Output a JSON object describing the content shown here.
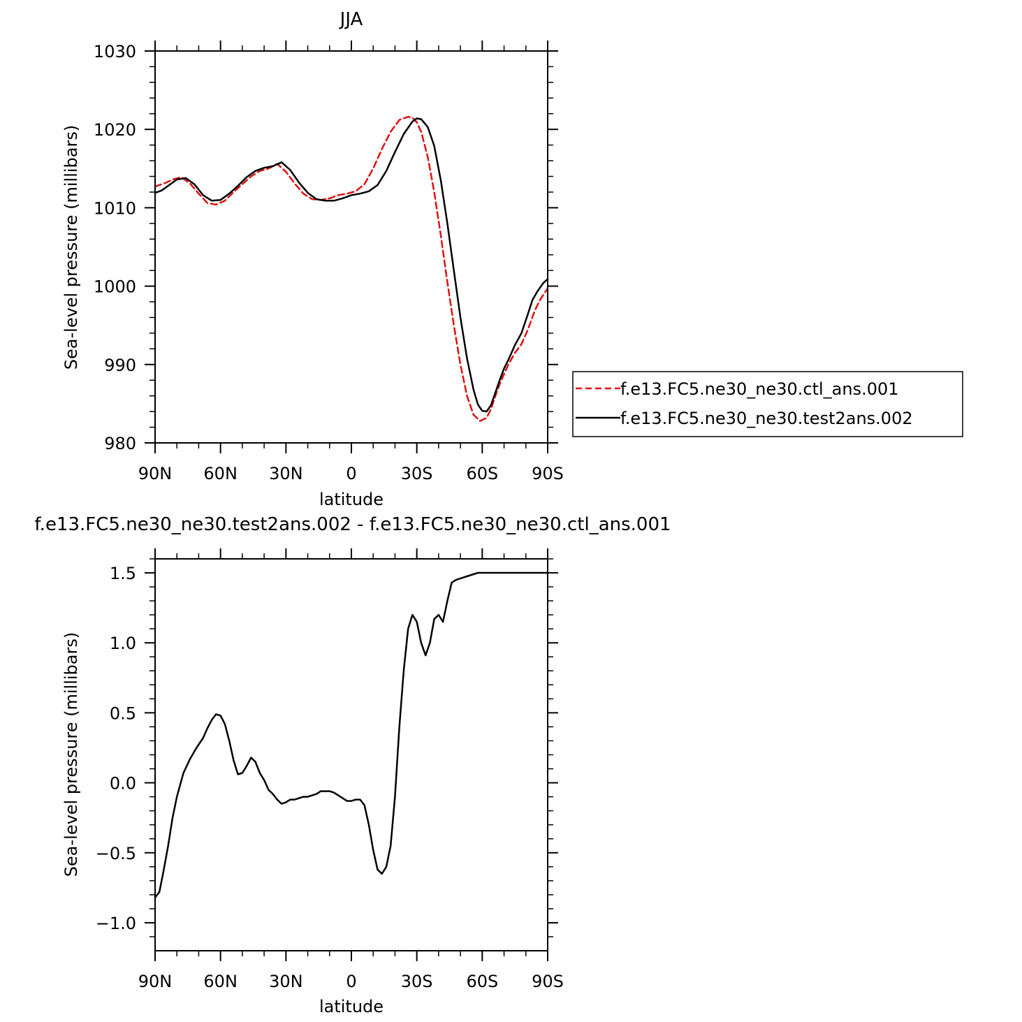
{
  "chart_data": [
    {
      "type": "line",
      "title": "JJA",
      "xlabel": "latitude",
      "ylabel": "Sea-level pressure (millibars)",
      "xlim": [
        -90,
        90
      ],
      "x_direction": "90N (left) to 90S (right)",
      "ylim": [
        980,
        1030
      ],
      "x_ticks": [
        -90,
        -60,
        -30,
        0,
        30,
        60,
        90
      ],
      "x_tick_labels": [
        "90N",
        "60N",
        "30N",
        "0",
        "30S",
        "60S",
        "90S"
      ],
      "y_ticks": [
        980,
        990,
        1000,
        1010,
        1020,
        1030
      ],
      "y_tick_labels": [
        "980",
        "990",
        "1000",
        "1010",
        "1020",
        "1030"
      ],
      "grid": false,
      "legend_position": "outside-right",
      "series": [
        {
          "name": "f.e13.FC5.ne30_ne30.ctl_ans.001",
          "color": "#e01010",
          "style": "dashed",
          "x": [
            -90,
            -85,
            -82,
            -78,
            -74,
            -70,
            -66,
            -62,
            -58,
            -54,
            -50,
            -46,
            -42,
            -38,
            -34,
            -30,
            -26,
            -22,
            -18,
            -14,
            -10,
            -6,
            -2,
            2,
            6,
            10,
            14,
            18,
            22,
            26,
            28,
            30,
            32,
            35,
            38,
            41,
            44,
            47,
            50,
            53,
            56,
            59,
            62,
            64,
            66,
            68,
            70,
            72,
            75,
            78,
            81,
            84,
            86,
            88,
            90
          ],
          "y": [
            1012.7,
            1013.2,
            1013.6,
            1013.9,
            1013.1,
            1011.8,
            1010.6,
            1010.4,
            1010.9,
            1012.0,
            1013.0,
            1014.0,
            1014.7,
            1015.0,
            1015.6,
            1014.6,
            1013.1,
            1011.8,
            1011.1,
            1011.0,
            1011.2,
            1011.6,
            1011.8,
            1012.1,
            1013.0,
            1015.0,
            1017.5,
            1019.7,
            1021.2,
            1021.6,
            1021.5,
            1020.9,
            1019.7,
            1016.5,
            1012.0,
            1006.5,
            1000.5,
            995.0,
            990.0,
            986.0,
            983.6,
            982.8,
            983.2,
            984.3,
            986.0,
            987.5,
            988.8,
            990.0,
            991.5,
            992.6,
            994.5,
            996.8,
            998.0,
            998.9,
            999.7
          ]
        },
        {
          "name": "f.e13.FC5.ne30_ne30.test2ans.002",
          "color": "#000000",
          "style": "solid",
          "x": [
            -90,
            -87,
            -84,
            -80,
            -76,
            -72,
            -68,
            -64,
            -60,
            -56,
            -52,
            -48,
            -44,
            -40,
            -36,
            -32,
            -28,
            -24,
            -20,
            -16,
            -12,
            -8,
            -4,
            0,
            4,
            8,
            12,
            16,
            20,
            24,
            28,
            30,
            32,
            35,
            38,
            41,
            44,
            47,
            50,
            53,
            56,
            58,
            60,
            62,
            64,
            66,
            68,
            70,
            72,
            75,
            78,
            81,
            83,
            85,
            87,
            88,
            90
          ],
          "y": [
            1011.9,
            1012.2,
            1012.8,
            1013.6,
            1013.8,
            1013.0,
            1011.6,
            1010.9,
            1011.0,
            1011.8,
            1012.8,
            1013.9,
            1014.7,
            1015.1,
            1015.3,
            1015.8,
            1014.8,
            1013.2,
            1011.9,
            1011.1,
            1010.9,
            1010.9,
            1011.2,
            1011.6,
            1011.8,
            1012.1,
            1012.9,
            1014.7,
            1017.1,
            1019.4,
            1021.0,
            1021.4,
            1021.3,
            1020.3,
            1017.9,
            1013.5,
            1008.0,
            1002.0,
            996.0,
            990.8,
            986.8,
            984.9,
            984.1,
            984.0,
            984.8,
            986.4,
            988.0,
            989.5,
            990.6,
            992.5,
            994.0,
            996.5,
            998.2,
            999.2,
            1000.0,
            1000.4,
            1000.9
          ]
        }
      ]
    },
    {
      "type": "line",
      "title": "f.e13.FC5.ne30_ne30.test2ans.002 - f.e13.FC5.ne30_ne30.ctl_ans.001",
      "xlabel": "latitude",
      "ylabel": "Sea-level pressure (millibars)",
      "xlim": [
        -90,
        90
      ],
      "x_direction": "90N (left) to 90S (right)",
      "ylim": [
        -1.2,
        1.6
      ],
      "x_ticks": [
        -90,
        -60,
        -30,
        0,
        30,
        60,
        90
      ],
      "x_tick_labels": [
        "90N",
        "60N",
        "30N",
        "0",
        "30S",
        "60S",
        "90S"
      ],
      "y_ticks": [
        -1.0,
        -0.5,
        0.0,
        0.5,
        1.0,
        1.5
      ],
      "y_tick_labels": [
        "−1.0",
        "−0.5",
        "0.0",
        "0.5",
        "1.0",
        "1.5"
      ],
      "grid": false,
      "series": [
        {
          "color": "#000000",
          "style": "solid",
          "x": [
            -90,
            -88,
            -86,
            -84,
            -82,
            -80,
            -77,
            -74,
            -71,
            -68,
            -66,
            -64,
            -62,
            -60,
            -58,
            -56,
            -54,
            -52,
            -50,
            -48,
            -46,
            -44,
            -42,
            -40,
            -38,
            -36,
            -34,
            -32,
            -30,
            -28,
            -26,
            -24,
            -22,
            -20,
            -18,
            -16,
            -14,
            -12,
            -10,
            -8,
            -6,
            -4,
            -2,
            0,
            2,
            4,
            6,
            8,
            10,
            12,
            14,
            16,
            18,
            20,
            22,
            24,
            26,
            28,
            30,
            32,
            34,
            36,
            38,
            40,
            42,
            44,
            46,
            48,
            50,
            52,
            54,
            56,
            58,
            60,
            62,
            64,
            66,
            68,
            70,
            72,
            74,
            76,
            78,
            80,
            82,
            84,
            86,
            87,
            88,
            89,
            90
          ],
          "y": [
            -0.82,
            -0.78,
            -0.62,
            -0.45,
            -0.25,
            -0.1,
            0.07,
            0.17,
            0.25,
            0.32,
            0.39,
            0.45,
            0.49,
            0.48,
            0.42,
            0.3,
            0.16,
            0.06,
            0.07,
            0.12,
            0.18,
            0.15,
            0.07,
            0.02,
            -0.05,
            -0.08,
            -0.12,
            -0.15,
            -0.14,
            -0.12,
            -0.12,
            -0.11,
            -0.1,
            -0.1,
            -0.09,
            -0.08,
            -0.06,
            -0.06,
            -0.06,
            -0.07,
            -0.09,
            -0.11,
            -0.13,
            -0.13,
            -0.12,
            -0.12,
            -0.16,
            -0.3,
            -0.48,
            -0.62,
            -0.65,
            -0.6,
            -0.45,
            -0.1,
            0.4,
            0.8,
            1.1,
            1.2,
            1.15,
            1.0,
            0.91,
            1.0,
            1.17,
            1.2,
            1.15,
            1.3,
            1.43,
            1.45,
            1.46,
            1.47,
            1.48,
            1.49,
            1.5,
            1.5,
            1.5,
            1.5,
            1.5,
            1.5,
            1.5,
            1.5,
            1.5,
            1.5,
            1.5,
            1.5,
            1.5,
            1.5,
            1.5,
            1.5,
            1.5,
            1.5,
            1.5
          ]
        }
      ]
    }
  ]
}
